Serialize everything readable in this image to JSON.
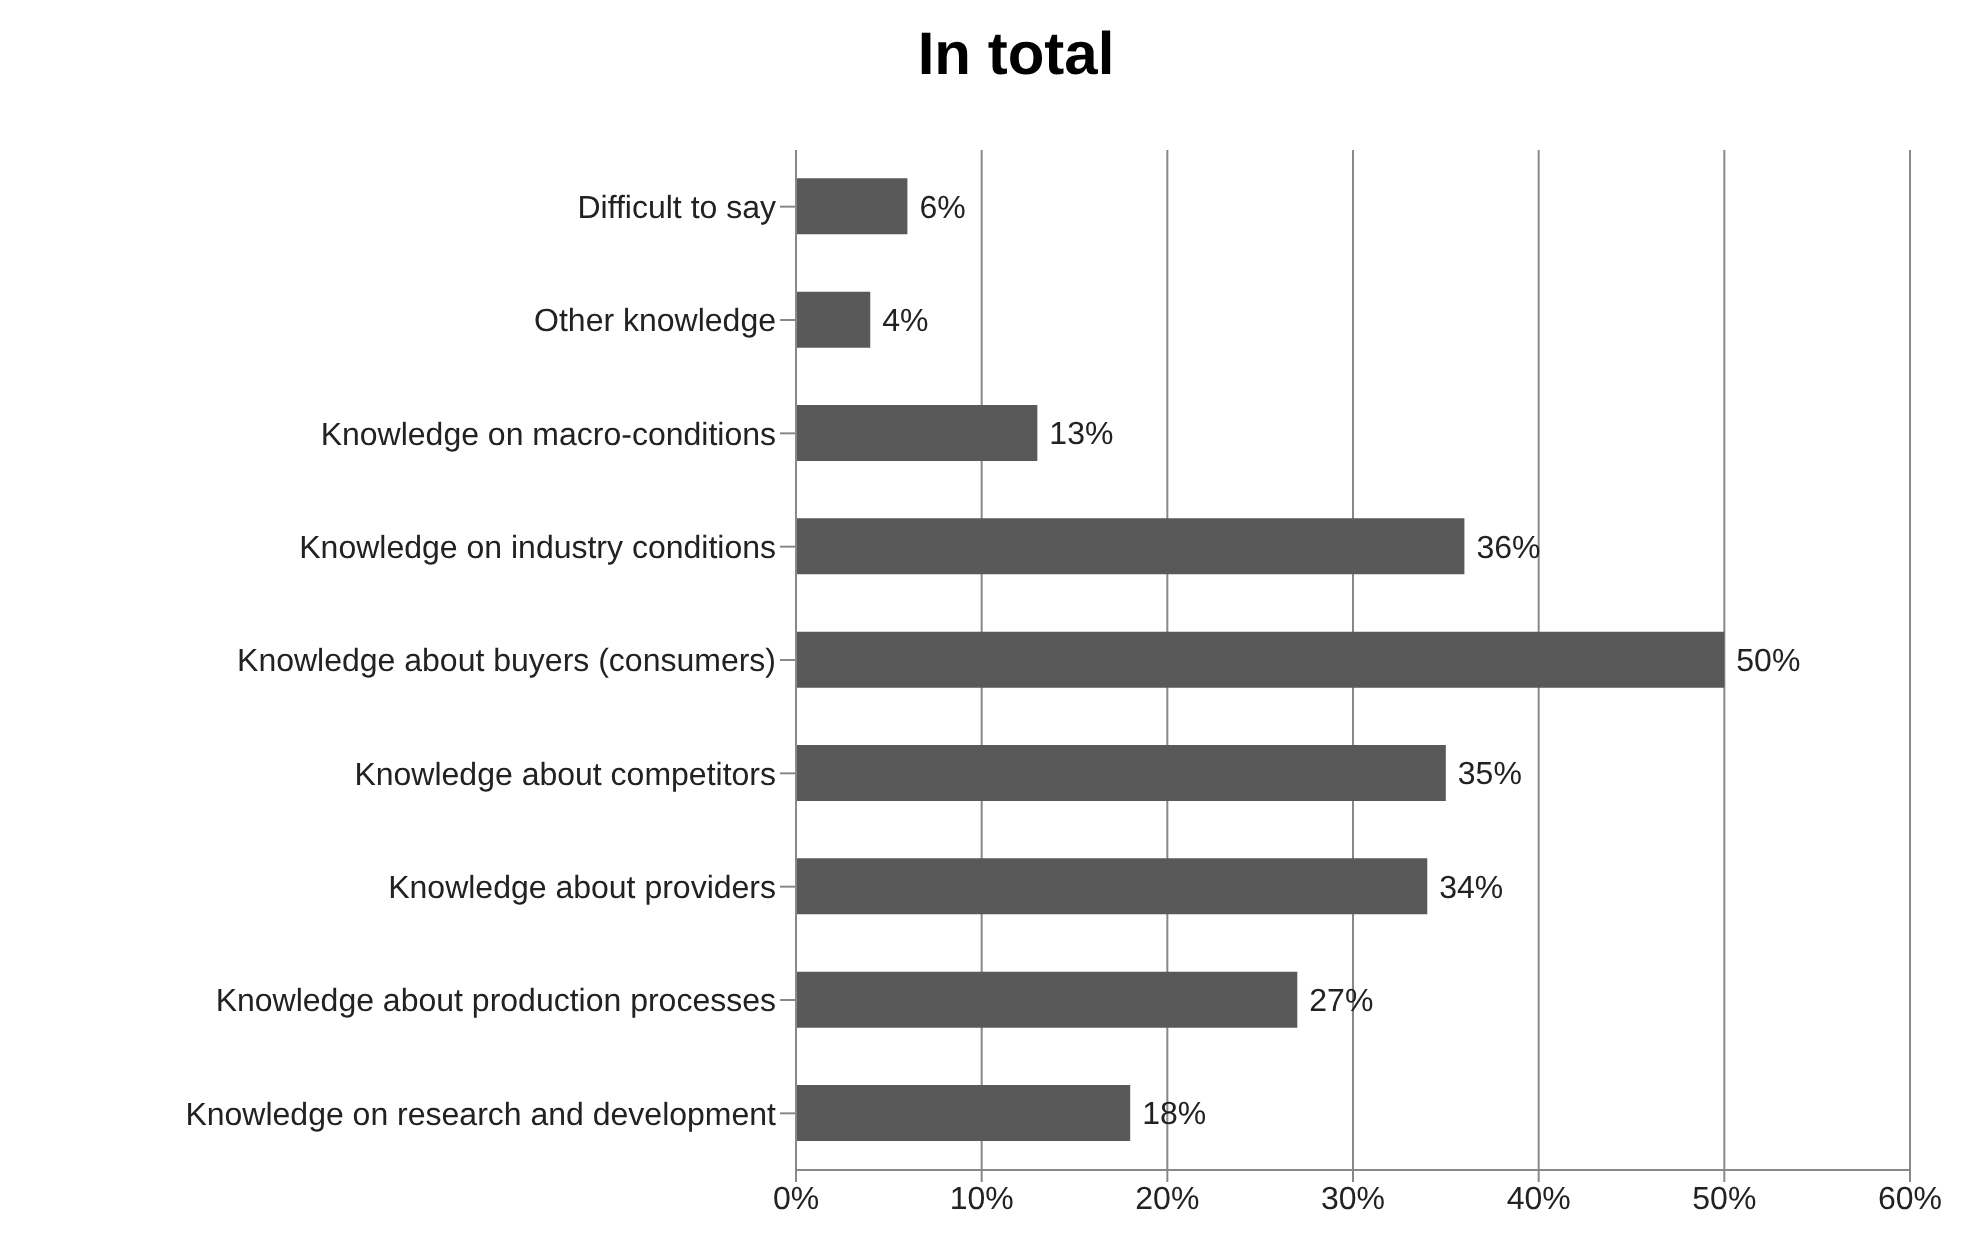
{
  "chart_data": {
    "type": "bar",
    "orientation": "horizontal",
    "title": "In total",
    "categories": [
      "Difficult to say",
      "Other knowledge",
      "Knowledge on macro-conditions",
      "Knowledge on industry conditions",
      "Knowledge about buyers (consumers)",
      "Knowledge about competitors",
      "Knowledge about providers",
      "Knowledge about production processes",
      "Knowledge on research and development"
    ],
    "values": [
      6,
      4,
      13,
      36,
      50,
      35,
      34,
      27,
      18
    ],
    "value_labels": [
      "6%",
      "4%",
      "13%",
      "36%",
      "50%",
      "35%",
      "34%",
      "27%",
      "18%"
    ],
    "color": "#595959",
    "xlim": [
      0,
      60
    ],
    "xticks": [
      {
        "value": 0,
        "label": "0%"
      },
      {
        "value": 10,
        "label": "10%"
      },
      {
        "value": 20,
        "label": "20%"
      },
      {
        "value": 30,
        "label": "30%"
      },
      {
        "value": 40,
        "label": "40%"
      },
      {
        "value": 50,
        "label": "50%"
      },
      {
        "value": 60,
        "label": "60%"
      }
    ],
    "grid": "x",
    "legend": false
  }
}
